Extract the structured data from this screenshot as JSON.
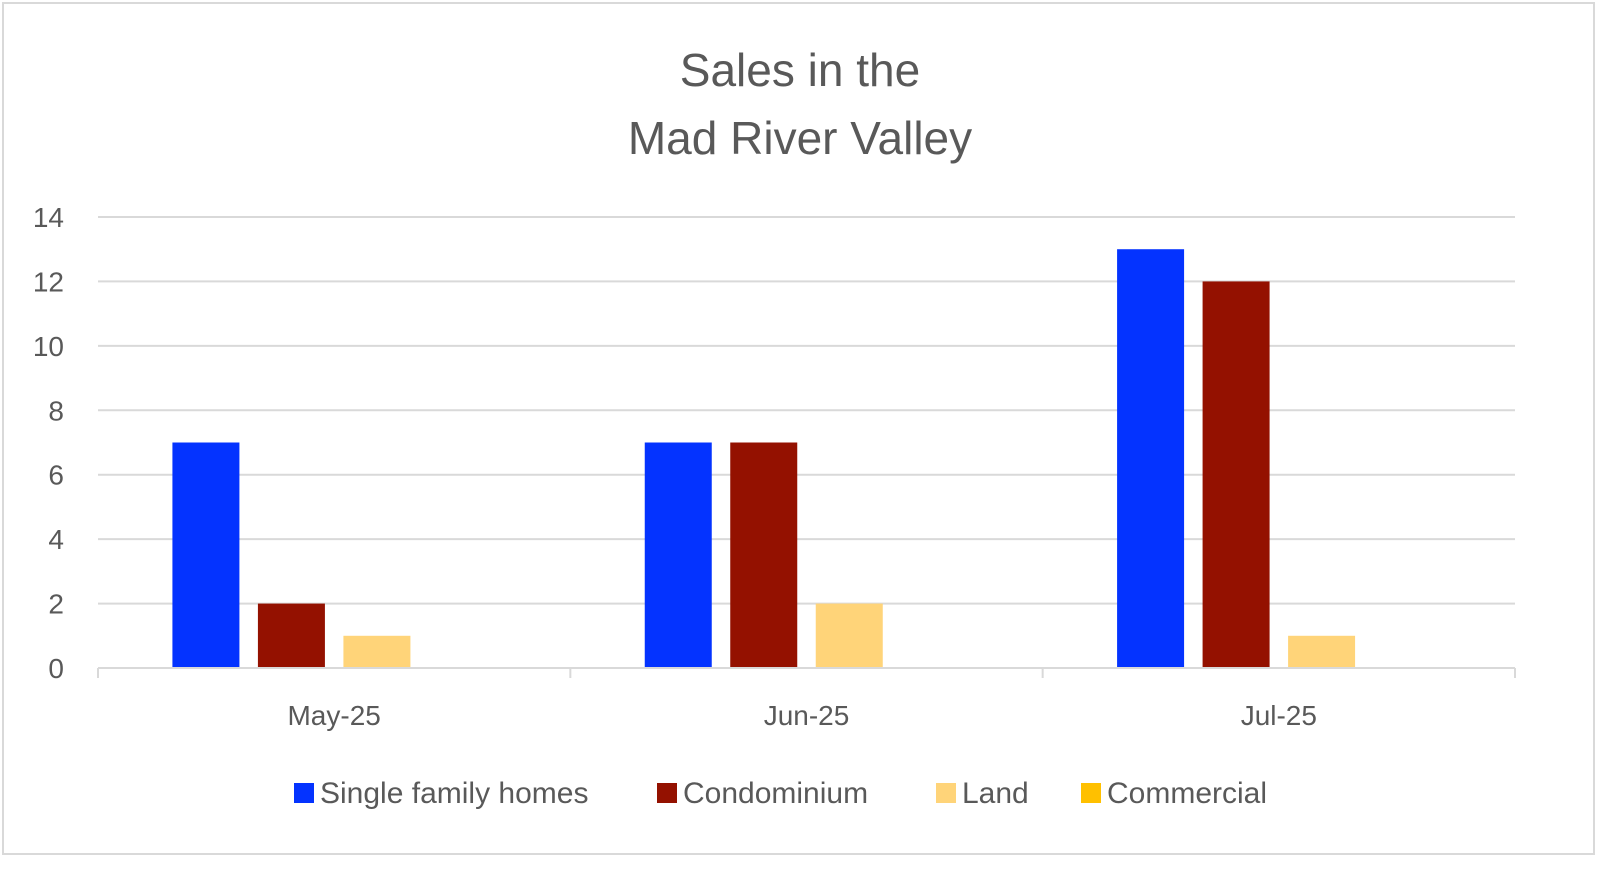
{
  "chart_data": {
    "type": "bar",
    "title_lines": [
      "Sales in the",
      "Mad River Valley"
    ],
    "categories": [
      "May-25",
      "Jun-25",
      "Jul-25"
    ],
    "series": [
      {
        "name": "Single family homes",
        "color": "#0433FF",
        "values": [
          7,
          7,
          13
        ]
      },
      {
        "name": "Condominium",
        "color": "#941100",
        "values": [
          2,
          7,
          12
        ]
      },
      {
        "name": "Land",
        "color": "#FFD479",
        "values": [
          1,
          2,
          1
        ]
      },
      {
        "name": "Commercial",
        "color": "#FFC000",
        "values": [
          0,
          0,
          0
        ]
      }
    ],
    "ylim": [
      0,
      14
    ],
    "yticks": [
      "0",
      "2",
      "4",
      "6",
      "8",
      "10",
      "12",
      "14"
    ],
    "xlabel": "",
    "ylabel": "",
    "grid": true,
    "legend": "bottom"
  }
}
